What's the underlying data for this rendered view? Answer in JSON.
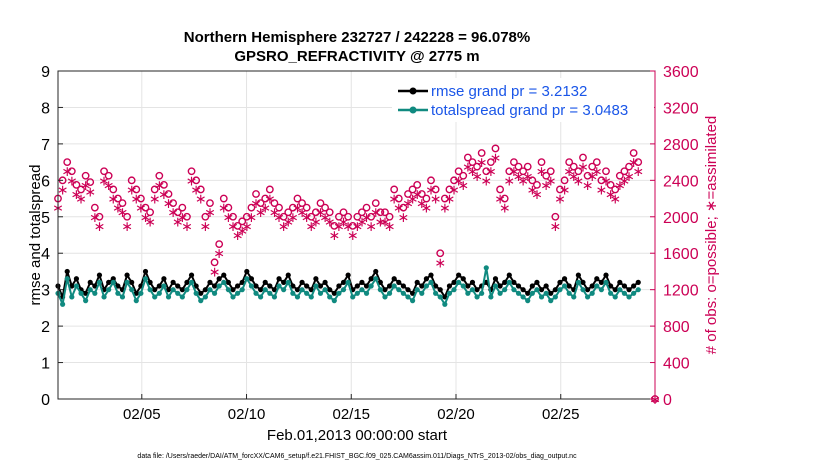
{
  "chart_data": {
    "type": "line",
    "title": "Northern Hemisphere 232727 / 242228 = 96.078%",
    "subtitle": "GPSRO_REFRACTIVITY @ 2775 m",
    "xlabel": "Feb.01,2013 00:00:00 start",
    "ylabel_left": "rmse and totalspread",
    "ylabel_right": "# of obs: o=possible; ∗=assimilated",
    "footnote": "data file: /Users/raeder/DAI/ATM_forcXX/CAM6_setup/f.e21.FHIST_BGC.f09_025.CAM6assim.011/Diags_NTrS_2013-02/obs_diag_output.nc",
    "x_range": [
      1,
      29.5
    ],
    "ylim_left": [
      0,
      9
    ],
    "ylim_right": [
      0,
      3600
    ],
    "yticks_left": [
      "0",
      "1",
      "2",
      "3",
      "4",
      "5",
      "6",
      "7",
      "8",
      "9"
    ],
    "yticks_right": [
      "0",
      "400",
      "800",
      "1200",
      "1600",
      "2000",
      "2400",
      "2800",
      "3200",
      "3600"
    ],
    "xticks": [
      {
        "day": 5,
        "label": "02/05"
      },
      {
        "day": 10,
        "label": "02/10"
      },
      {
        "day": 15,
        "label": "02/15"
      },
      {
        "day": 20,
        "label": "02/20"
      },
      {
        "day": 25,
        "label": "02/25"
      }
    ],
    "grid": true,
    "legend_position": "top-right",
    "series": [
      {
        "name": "rmse",
        "legend": "rmse grand pr = 3.2132",
        "color": "#000000",
        "axis": "left",
        "marker": "dot",
        "values": [
          3.1,
          2.8,
          3.5,
          3.1,
          3.3,
          3.0,
          2.9,
          3.2,
          3.1,
          3.4,
          3.0,
          3.2,
          3.3,
          3.1,
          3.0,
          3.4,
          3.2,
          2.9,
          3.1,
          3.5,
          3.2,
          3.0,
          3.1,
          3.3,
          3.0,
          3.2,
          3.1,
          3.0,
          3.2,
          3.4,
          3.1,
          2.9,
          3.0,
          3.2,
          3.1,
          3.3,
          3.4,
          3.2,
          3.0,
          3.1,
          3.2,
          3.5,
          3.3,
          3.1,
          3.0,
          3.2,
          3.1,
          3.0,
          3.3,
          3.2,
          3.4,
          3.1,
          3.0,
          3.2,
          3.1,
          3.0,
          3.3,
          3.1,
          3.2,
          3.0,
          2.9,
          3.1,
          3.2,
          3.4,
          3.0,
          3.1,
          3.2,
          3.1,
          3.3,
          3.5,
          3.2,
          3.0,
          3.1,
          3.3,
          3.2,
          3.1,
          3.0,
          2.9,
          3.2,
          3.1,
          3.3,
          3.4,
          3.1,
          3.0,
          2.8,
          3.1,
          3.2,
          3.4,
          3.3,
          3.1,
          3.2,
          3.0,
          3.1,
          3.2,
          3.0,
          3.3,
          3.1,
          3.2,
          3.4,
          3.2,
          3.1,
          3.0,
          2.9,
          3.1,
          3.2,
          3.0,
          3.1,
          2.9,
          3.0,
          3.2,
          3.3,
          3.1,
          3.0,
          3.4,
          3.2,
          3.0,
          3.1,
          3.3,
          3.2,
          3.4,
          3.1,
          3.0,
          3.2,
          3.1,
          3.0,
          3.1,
          3.2
        ]
      },
      {
        "name": "totalspread",
        "legend": "totalspread grand pr = 3.0483",
        "color": "#108a80",
        "axis": "left",
        "marker": "dot",
        "values": [
          2.9,
          2.6,
          3.3,
          2.8,
          3.1,
          2.9,
          2.7,
          3.0,
          2.9,
          3.2,
          2.8,
          3.0,
          3.2,
          2.9,
          2.8,
          3.2,
          3.0,
          2.7,
          2.9,
          3.3,
          3.0,
          2.8,
          2.9,
          3.1,
          2.8,
          3.0,
          2.9,
          2.8,
          3.0,
          3.2,
          2.9,
          2.7,
          2.8,
          3.0,
          2.9,
          3.1,
          3.2,
          3.0,
          2.8,
          2.9,
          3.0,
          3.3,
          3.1,
          2.9,
          2.8,
          3.0,
          2.9,
          2.8,
          3.1,
          3.0,
          3.2,
          2.9,
          2.8,
          3.0,
          2.9,
          2.8,
          3.1,
          2.9,
          3.0,
          2.8,
          2.7,
          2.9,
          3.0,
          3.2,
          2.8,
          2.9,
          3.0,
          2.9,
          3.1,
          3.3,
          3.0,
          2.8,
          2.9,
          3.1,
          3.0,
          2.9,
          2.8,
          2.7,
          3.0,
          2.9,
          3.1,
          3.2,
          2.9,
          2.8,
          2.6,
          2.9,
          3.0,
          3.2,
          3.1,
          2.9,
          3.0,
          2.8,
          2.9,
          3.6,
          2.8,
          3.1,
          2.9,
          3.0,
          3.2,
          3.0,
          2.9,
          2.8,
          2.7,
          2.9,
          3.0,
          2.8,
          2.9,
          2.7,
          2.8,
          3.0,
          3.1,
          2.9,
          2.8,
          3.2,
          3.0,
          2.8,
          2.9,
          3.1,
          3.0,
          3.2,
          2.9,
          2.8,
          3.0,
          2.9,
          2.8,
          2.9,
          3.0
        ]
      },
      {
        "name": "possible",
        "legend": "o = possible",
        "color": "#cc0055",
        "axis": "right",
        "marker": "circle",
        "values": [
          2200,
          2400,
          2600,
          2500,
          2350,
          2300,
          2450,
          2380,
          2100,
          2000,
          2500,
          2450,
          2300,
          2200,
          2150,
          2000,
          2400,
          2300,
          2200,
          2100,
          2050,
          2300,
          2450,
          2350,
          2250,
          2150,
          2050,
          2100,
          2000,
          2500,
          2400,
          2300,
          2000,
          2150,
          1500,
          1700,
          2200,
          2100,
          2000,
          1900,
          1950,
          2000,
          2100,
          2250,
          2150,
          2200,
          2300,
          2150,
          2100,
          2000,
          2050,
          2100,
          2200,
          2150,
          2100,
          2000,
          2050,
          2150,
          2100,
          2050,
          1900,
          2000,
          2050,
          2000,
          1900,
          2000,
          2050,
          2100,
          2000,
          2150,
          2050,
          2050,
          2000,
          2300,
          2200,
          2100,
          2250,
          2300,
          2350,
          2250,
          2200,
          2400,
          2300,
          1600,
          2200,
          2300,
          2400,
          2500,
          2450,
          2650,
          2600,
          2550,
          2700,
          2500,
          2600,
          2750,
          2300,
          2200,
          2500,
          2600,
          2550,
          2500,
          2550,
          2400,
          2350,
          2600,
          2450,
          2500,
          2000,
          2300,
          2400,
          2600,
          2550,
          2500,
          2650,
          2450,
          2550,
          2600,
          2400,
          2500,
          2350,
          2300,
          2450,
          2500,
          2550,
          2700,
          2600
        ]
      },
      {
        "name": "assimilated",
        "legend": "∗ = assimilated",
        "color": "#cc0055",
        "axis": "right",
        "marker": "star",
        "values": [
          2100,
          2300,
          2500,
          2400,
          2250,
          2200,
          2350,
          2280,
          2000,
          1900,
          2400,
          2350,
          2200,
          2100,
          2050,
          1900,
          2300,
          2200,
          2100,
          2000,
          1950,
          2200,
          2350,
          2250,
          2150,
          2050,
          1950,
          2000,
          1900,
          2400,
          2300,
          2200,
          1900,
          2050,
          1400,
          1600,
          2100,
          2000,
          1900,
          1800,
          1850,
          1900,
          2000,
          2150,
          2050,
          2100,
          2200,
          2050,
          2000,
          1900,
          1950,
          2000,
          2100,
          2050,
          2000,
          1900,
          1950,
          2050,
          2000,
          1950,
          1800,
          1900,
          1950,
          1900,
          1800,
          1900,
          1950,
          2000,
          1900,
          2050,
          1950,
          1950,
          1900,
          2200,
          2100,
          2000,
          2150,
          2200,
          2250,
          2150,
          2100,
          2300,
          2200,
          1500,
          2100,
          2200,
          2300,
          2400,
          2350,
          2550,
          2500,
          2450,
          2600,
          2400,
          2500,
          2650,
          2200,
          2100,
          2400,
          2500,
          2450,
          2400,
          2450,
          2300,
          2250,
          2500,
          2350,
          2400,
          1900,
          2200,
          2300,
          2500,
          2450,
          2400,
          2550,
          2350,
          2450,
          2500,
          2300,
          2400,
          2250,
          2200,
          2350,
          2400,
          2450,
          2600,
          2500
        ]
      }
    ],
    "annotations": [
      {
        "marker": "circle",
        "axis": "right",
        "x": 29.5,
        "y": 0
      },
      {
        "marker": "star",
        "axis": "right",
        "x": 29.5,
        "y": 0
      }
    ]
  }
}
